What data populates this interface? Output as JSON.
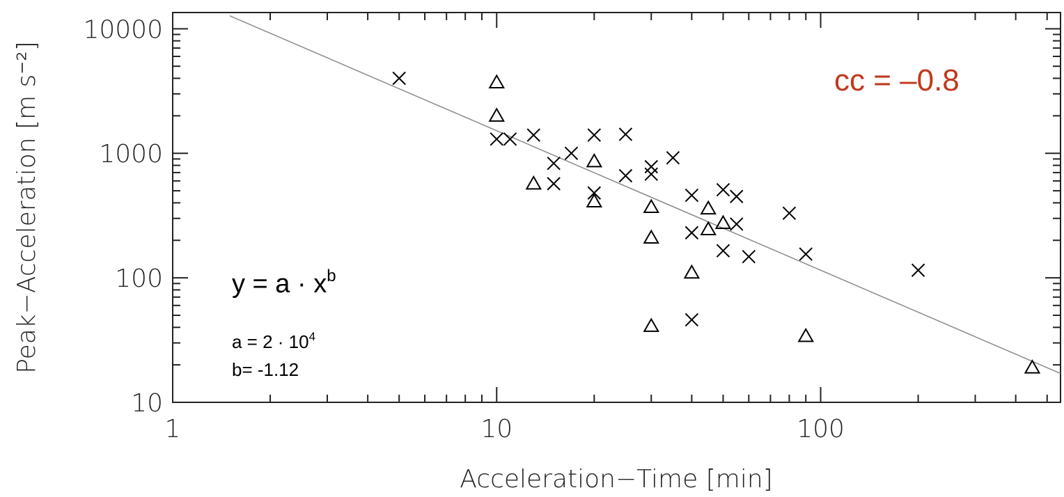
{
  "chart_data": {
    "type": "scatter",
    "title": "",
    "xlabel": "Acceleration−Time [min]",
    "ylabel": "Peak−Acceleration [m s⁻²]",
    "x_scale": "log",
    "y_scale": "log",
    "xlim": [
      1,
      550
    ],
    "ylim": [
      10,
      13500
    ],
    "x_ticks": [
      {
        "value": 1,
        "label": "1"
      },
      {
        "value": 10,
        "label": "10"
      },
      {
        "value": 100,
        "label": "100"
      }
    ],
    "y_ticks": [
      {
        "value": 10,
        "label": "10"
      },
      {
        "value": 100,
        "label": "100"
      },
      {
        "value": 1000,
        "label": "1000"
      },
      {
        "value": 10000,
        "label": "10000"
      }
    ],
    "series": [
      {
        "marker": "cross",
        "points": [
          [
            5,
            4000
          ],
          [
            10,
            1300
          ],
          [
            11,
            1300
          ],
          [
            13,
            1400
          ],
          [
            15,
            570
          ],
          [
            15,
            830
          ],
          [
            17,
            1000
          ],
          [
            20,
            1400
          ],
          [
            20,
            480
          ],
          [
            25,
            1420
          ],
          [
            25,
            660
          ],
          [
            30,
            780
          ],
          [
            30,
            680
          ],
          [
            35,
            920
          ],
          [
            40,
            460
          ],
          [
            40,
            230
          ],
          [
            40,
            46
          ],
          [
            50,
            510
          ],
          [
            50,
            165
          ],
          [
            55,
            450
          ],
          [
            55,
            270
          ],
          [
            60,
            148
          ],
          [
            80,
            330
          ],
          [
            90,
            155
          ],
          [
            200,
            115
          ]
        ]
      },
      {
        "marker": "triangle",
        "points": [
          [
            10,
            3700
          ],
          [
            10,
            2000
          ],
          [
            13,
            570
          ],
          [
            20,
            860
          ],
          [
            20,
            410
          ],
          [
            30,
            370
          ],
          [
            30,
            210
          ],
          [
            30,
            41
          ],
          [
            40,
            110
          ],
          [
            45,
            360
          ],
          [
            45,
            245
          ],
          [
            50,
            275
          ],
          [
            90,
            34
          ],
          [
            450,
            19
          ]
        ]
      }
    ],
    "fit_line": {
      "a": 20000,
      "b": -1.12,
      "x_range": [
        1.5,
        550
      ]
    },
    "annotations": {
      "formula_base": "y = a · x",
      "formula_exp": "b",
      "a_base": "a = 2 · 10",
      "a_exp": "4",
      "b_text": "b= -1.12",
      "cc": "cc = –0.8"
    },
    "colors": {
      "markers": "#000000",
      "fit_line": "#8a8a8a",
      "cc_text": "#c0391b",
      "axes": "#222222"
    }
  }
}
